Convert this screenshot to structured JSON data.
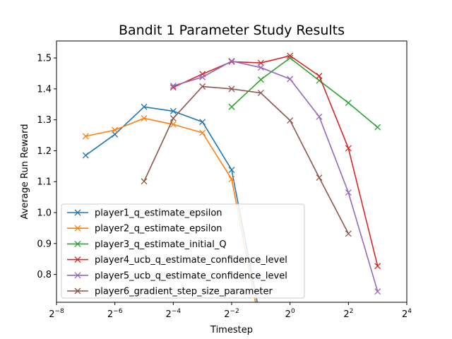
{
  "chart_data": {
    "type": "line",
    "title": "Bandit 1 Parameter Study Results",
    "xlabel": "Timestep",
    "ylabel": "Average Run Reward",
    "x_scale": "log2",
    "x_ticks": [
      -8,
      -6,
      -4,
      -2,
      0,
      2,
      4
    ],
    "x_tick_base": "2",
    "xlim_exp": [
      -8,
      4
    ],
    "ylim": [
      0.71,
      1.555
    ],
    "y_ticks": [
      "0.8",
      "0.9",
      "1.0",
      "1.1",
      "1.2",
      "1.3",
      "1.4",
      "1.5"
    ],
    "grid": false,
    "legend_position": "lower-left",
    "marker": "x",
    "series": [
      {
        "name": "player1_q_estimate_epsilon",
        "color": "#1f77b4",
        "x_exp": [
          -7,
          -6,
          -5,
          -4,
          -3,
          -2,
          -1
        ],
        "y": [
          1.185,
          1.253,
          1.342,
          1.328,
          1.293,
          1.138,
          0.65
        ]
      },
      {
        "name": "player2_q_estimate_epsilon",
        "color": "#ff7f0e",
        "x_exp": [
          -7,
          -6,
          -5,
          -4,
          -3,
          -2,
          -1
        ],
        "y": [
          1.247,
          1.267,
          1.305,
          1.285,
          1.258,
          1.108,
          0.62
        ]
      },
      {
        "name": "player3_q_estimate_initial_Q",
        "color": "#2ca02c",
        "x_exp": [
          -2,
          -1,
          0,
          1,
          2,
          3
        ],
        "y": [
          1.342,
          1.43,
          1.5,
          1.427,
          1.355,
          1.276
        ]
      },
      {
        "name": "player4_ucb_q_estimate_confidence_level",
        "color": "#d62728",
        "x_exp": [
          -4,
          -3,
          -2,
          -1,
          0,
          1,
          2,
          3
        ],
        "y": [
          1.405,
          1.448,
          1.488,
          1.484,
          1.507,
          1.442,
          1.208,
          0.827
        ]
      },
      {
        "name": "player5_ucb_q_estimate_confidence_level",
        "color": "#9467bd",
        "x_exp": [
          -4,
          -3,
          -2,
          -1,
          0,
          1,
          2,
          3
        ],
        "y": [
          1.41,
          1.438,
          1.49,
          1.469,
          1.432,
          1.31,
          1.065,
          0.745
        ]
      },
      {
        "name": "player6_gradient_step_size_parameter",
        "color": "#8c564b",
        "x_exp": [
          -5,
          -4,
          -3,
          -2,
          -1,
          0,
          1,
          2
        ],
        "y": [
          1.101,
          1.305,
          1.408,
          1.4,
          1.387,
          1.298,
          1.113,
          0.932
        ]
      }
    ]
  }
}
